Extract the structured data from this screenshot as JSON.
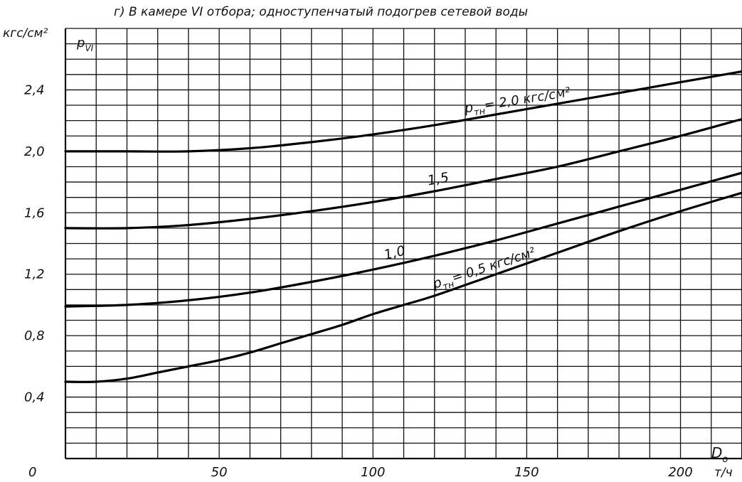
{
  "chart_data": {
    "type": "line",
    "title": "г) В камере VI отбора; одноступенчатый подогрев сетевой воды",
    "y_unit_label": "кгс/см²",
    "ylabel": "p",
    "ylabel_sub": "VI",
    "xlabel": "D",
    "xlabel_sub": "о",
    "x_unit_label": "т/ч",
    "origin_label": "0",
    "xlim": [
      0,
      220
    ],
    "ylim": [
      0,
      2.8
    ],
    "x_ticks": [
      {
        "value": 50,
        "label": "50"
      },
      {
        "value": 100,
        "label": "100"
      },
      {
        "value": 150,
        "label": "150"
      },
      {
        "value": 200,
        "label": "200"
      }
    ],
    "y_ticks": [
      {
        "value": 0.4,
        "label": "0,4"
      },
      {
        "value": 0.8,
        "label": "0,8"
      },
      {
        "value": 1.2,
        "label": "1,2"
      },
      {
        "value": 1.6,
        "label": "1,6"
      },
      {
        "value": 2.0,
        "label": "2,0"
      },
      {
        "value": 2.4,
        "label": "2,4"
      }
    ],
    "grid": true,
    "series": [
      {
        "name": "pтн = 2,0 кгс/см²",
        "label_main": "p",
        "label_sub": "тн",
        "label_rest": "= 2,0 кгс/см²",
        "x": [
          0,
          20,
          40,
          60,
          80,
          100,
          120,
          140,
          160,
          180,
          200,
          220
        ],
        "y": [
          2.0,
          2.0,
          2.0,
          2.02,
          2.06,
          2.11,
          2.17,
          2.24,
          2.31,
          2.38,
          2.45,
          2.52
        ]
      },
      {
        "name": "1,5",
        "label_main": "1,5",
        "x": [
          0,
          20,
          40,
          60,
          80,
          100,
          120,
          140,
          160,
          180,
          200,
          220
        ],
        "y": [
          1.5,
          1.5,
          1.52,
          1.56,
          1.61,
          1.67,
          1.74,
          1.82,
          1.9,
          2.0,
          2.1,
          2.21
        ]
      },
      {
        "name": "1,0",
        "label_main": "1,0",
        "x": [
          0,
          20,
          40,
          60,
          80,
          100,
          120,
          140,
          160,
          180,
          200,
          220
        ],
        "y": [
          0.99,
          1.0,
          1.03,
          1.08,
          1.15,
          1.23,
          1.32,
          1.42,
          1.53,
          1.64,
          1.75,
          1.86
        ]
      },
      {
        "name": "pтн = 0,5 кгс/см²",
        "label_main": "p",
        "label_sub": "тн",
        "label_rest": "= 0,5 кгс/см²",
        "x": [
          0,
          10,
          20,
          30,
          40,
          50,
          60,
          70,
          80,
          90,
          100,
          110,
          120,
          140,
          160,
          180,
          200,
          220
        ],
        "y": [
          0.5,
          0.5,
          0.52,
          0.56,
          0.6,
          0.64,
          0.69,
          0.75,
          0.81,
          0.87,
          0.94,
          1.0,
          1.06,
          1.2,
          1.34,
          1.48,
          1.61,
          1.73
        ]
      }
    ]
  }
}
